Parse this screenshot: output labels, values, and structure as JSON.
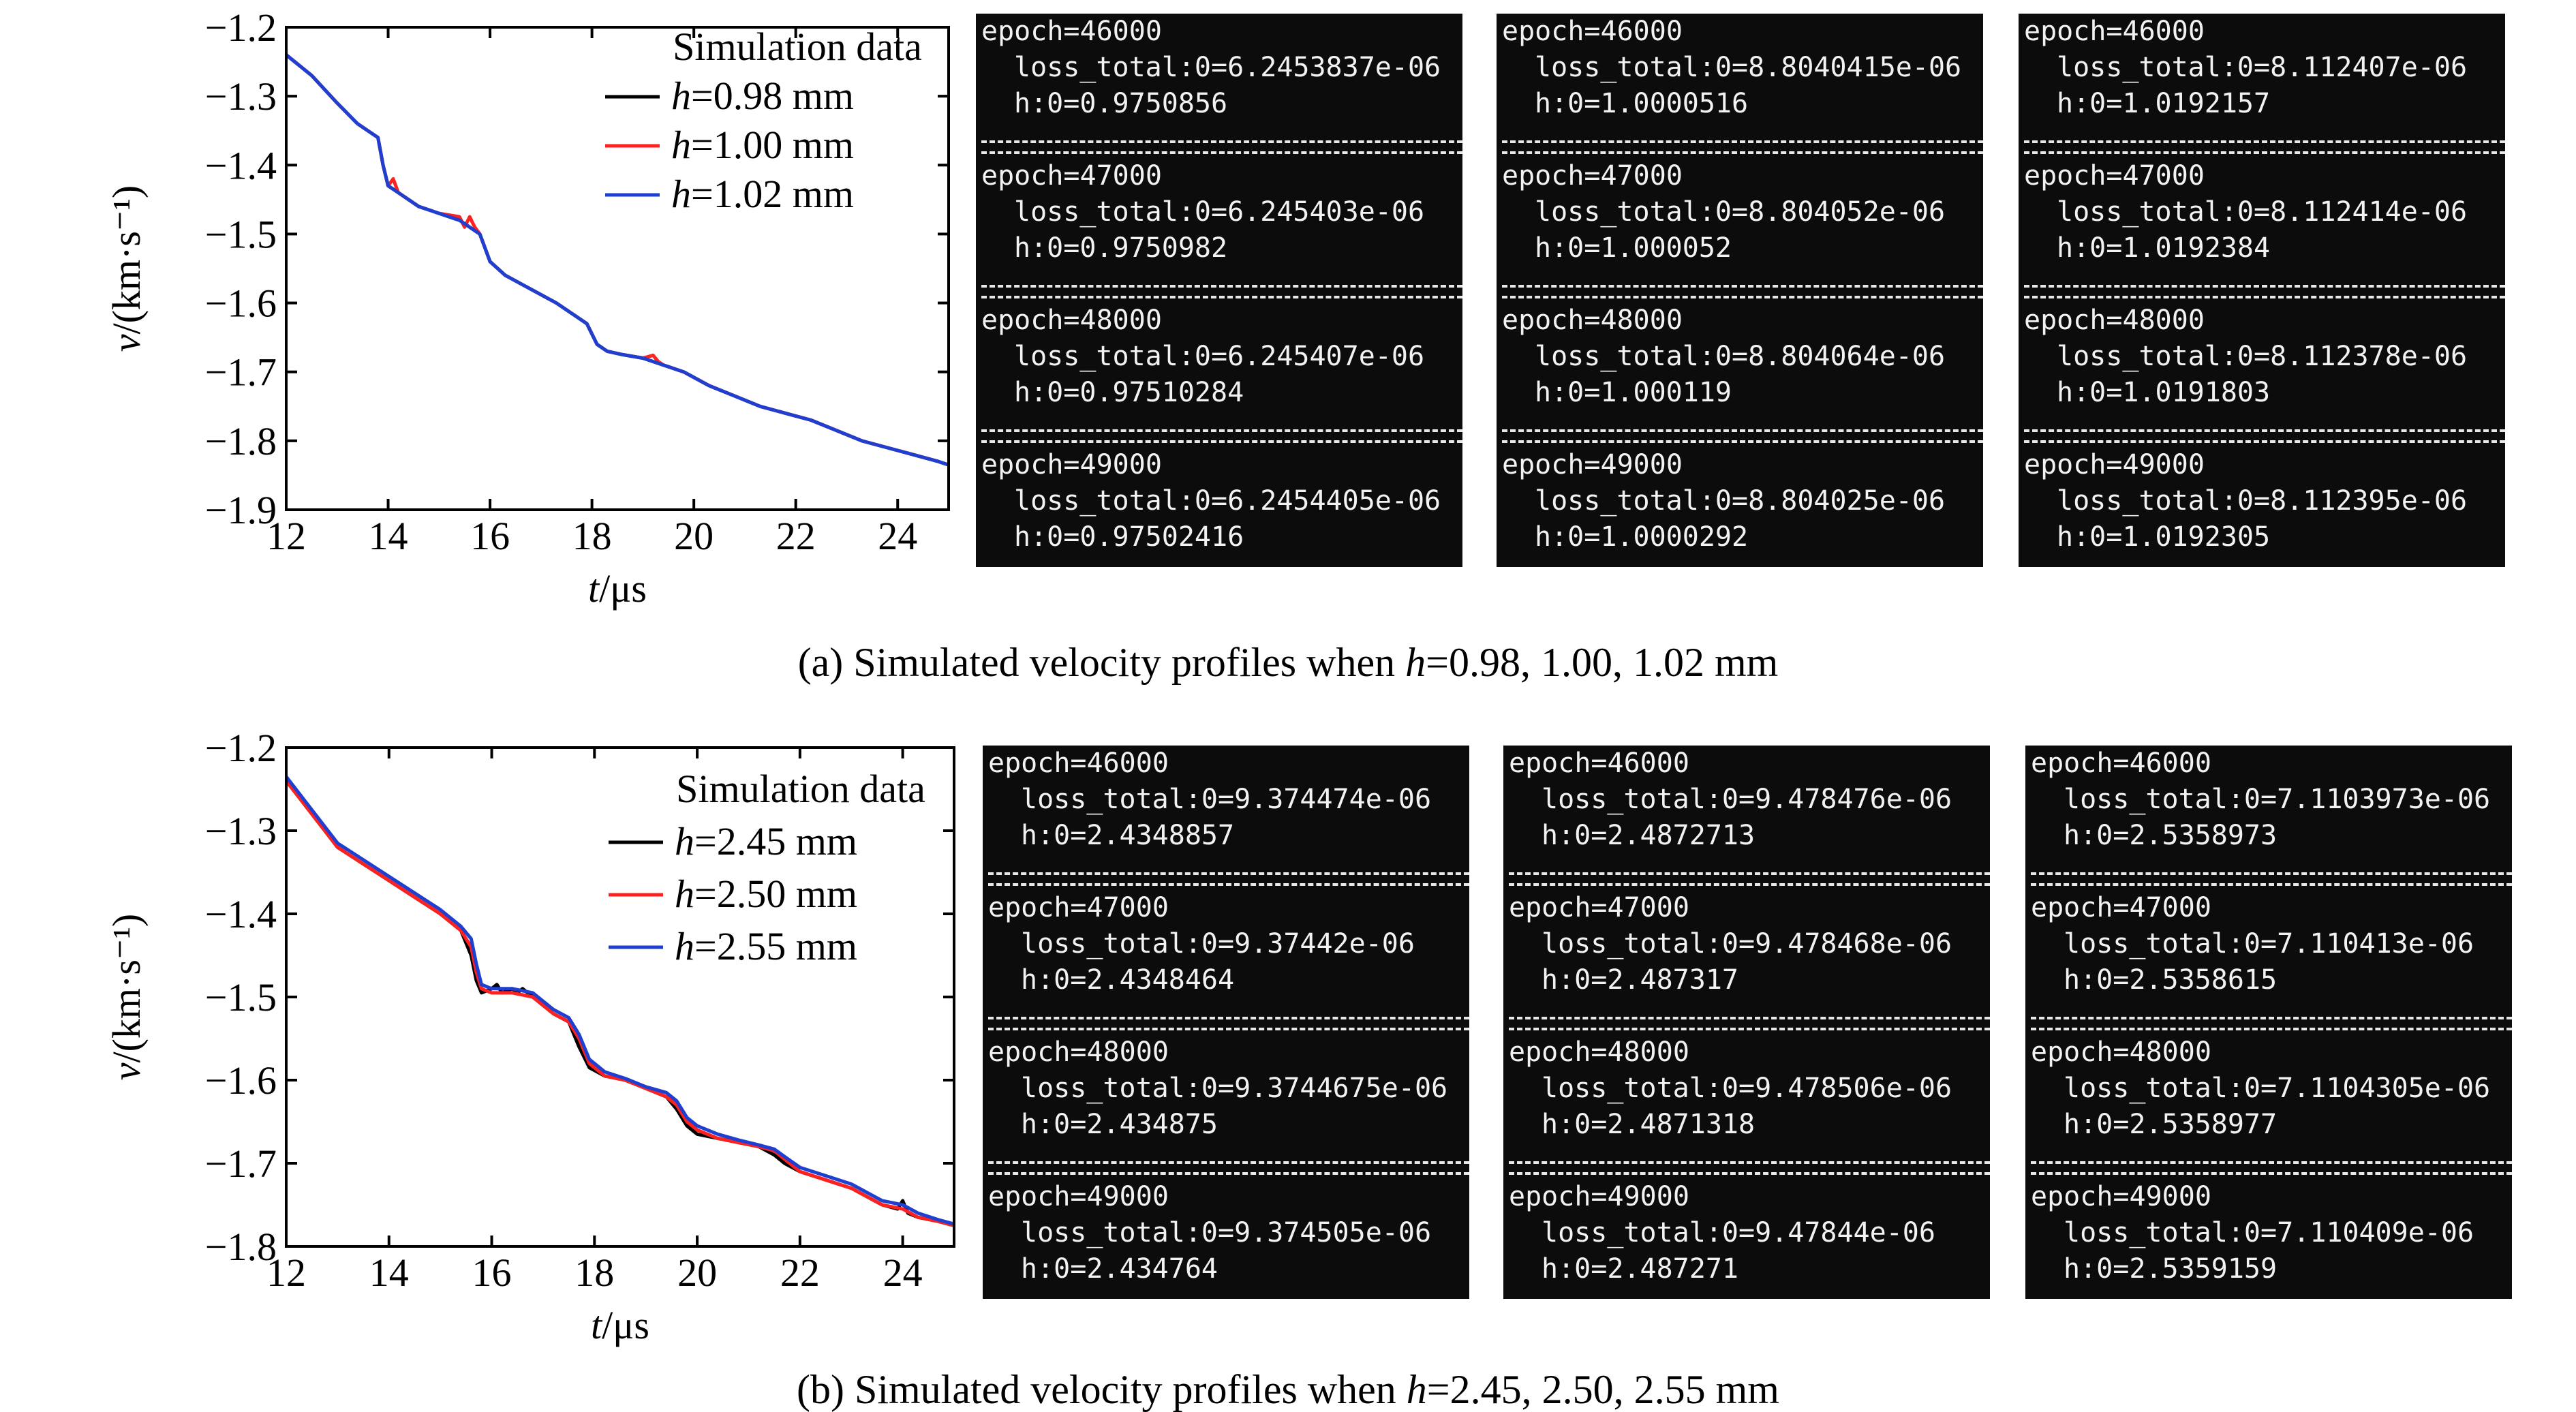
{
  "chart_data": [
    {
      "type": "line",
      "x_label": "t/μs",
      "y_label": "v/(km·s⁻¹)",
      "xlim": [
        12,
        25
      ],
      "ylim": [
        -1.9,
        -1.2
      ],
      "x_ticks": [
        "12",
        "14",
        "16",
        "18",
        "20",
        "22",
        "24"
      ],
      "y_ticks": [
        "−1.2",
        "−1.3",
        "−1.4",
        "−1.5",
        "−1.6",
        "−1.7",
        "−1.8",
        "−1.9"
      ],
      "legend_title": "Simulation data",
      "legend_position": "top-right",
      "grid": false,
      "series": [
        {
          "name": "h=0.98 mm",
          "var": "h",
          "value": "=0.98 mm",
          "color": "#000000",
          "x": [
            12,
            12.5,
            13,
            13.4,
            13.6,
            13.8,
            13.9,
            14.0,
            14.2,
            14.6,
            15.0,
            15.4,
            15.6,
            15.8,
            16.0,
            16.3,
            16.8,
            17.3,
            17.7,
            17.9,
            18.1,
            18.3,
            18.6,
            19.0,
            19.4,
            19.8,
            20.3,
            20.8,
            21.3,
            21.8,
            22.3,
            22.8,
            23.3,
            23.8,
            24.3,
            24.8,
            25.0
          ],
          "y": [
            -1.24,
            -1.27,
            -1.31,
            -1.34,
            -1.35,
            -1.36,
            -1.4,
            -1.43,
            -1.44,
            -1.46,
            -1.47,
            -1.48,
            -1.49,
            -1.5,
            -1.54,
            -1.56,
            -1.58,
            -1.6,
            -1.62,
            -1.63,
            -1.66,
            -1.67,
            -1.675,
            -1.68,
            -1.69,
            -1.7,
            -1.72,
            -1.735,
            -1.75,
            -1.76,
            -1.77,
            -1.785,
            -1.8,
            -1.81,
            -1.82,
            -1.83,
            -1.835
          ]
        },
        {
          "name": "h=1.00 mm",
          "var": "h",
          "value": "=1.00 mm",
          "color": "#ff2020",
          "x": [
            12,
            12.5,
            13,
            13.4,
            13.6,
            13.8,
            13.9,
            14.0,
            14.1,
            14.2,
            14.6,
            15.0,
            15.4,
            15.5,
            15.6,
            15.7,
            15.8,
            16.0,
            16.3,
            16.8,
            17.3,
            17.7,
            17.9,
            18.1,
            18.3,
            18.6,
            19.0,
            19.2,
            19.3,
            19.4,
            19.8,
            20.3,
            20.8,
            21.3,
            21.8,
            22.3,
            22.8,
            23.3,
            23.8,
            24.3,
            24.8,
            25.0
          ],
          "y": [
            -1.24,
            -1.27,
            -1.31,
            -1.34,
            -1.35,
            -1.36,
            -1.4,
            -1.43,
            -1.42,
            -1.44,
            -1.46,
            -1.47,
            -1.475,
            -1.49,
            -1.475,
            -1.49,
            -1.5,
            -1.54,
            -1.56,
            -1.58,
            -1.6,
            -1.62,
            -1.63,
            -1.66,
            -1.67,
            -1.675,
            -1.68,
            -1.676,
            -1.685,
            -1.69,
            -1.7,
            -1.72,
            -1.735,
            -1.75,
            -1.76,
            -1.77,
            -1.785,
            -1.8,
            -1.81,
            -1.82,
            -1.83,
            -1.835
          ]
        },
        {
          "name": "h=1.02 mm",
          "var": "h",
          "value": "=1.02 mm",
          "color": "#1f3fd0",
          "x": [
            12,
            12.5,
            13,
            13.4,
            13.6,
            13.8,
            13.9,
            14.0,
            14.2,
            14.6,
            15.0,
            15.4,
            15.6,
            15.8,
            16.0,
            16.3,
            16.8,
            17.3,
            17.7,
            17.9,
            18.1,
            18.3,
            18.6,
            19.0,
            19.4,
            19.8,
            20.3,
            20.8,
            21.3,
            21.8,
            22.3,
            22.8,
            23.3,
            23.8,
            24.3,
            24.8,
            25.0
          ],
          "y": [
            -1.24,
            -1.27,
            -1.31,
            -1.34,
            -1.35,
            -1.36,
            -1.4,
            -1.43,
            -1.44,
            -1.46,
            -1.47,
            -1.48,
            -1.49,
            -1.5,
            -1.54,
            -1.56,
            -1.58,
            -1.6,
            -1.62,
            -1.63,
            -1.66,
            -1.67,
            -1.675,
            -1.68,
            -1.69,
            -1.7,
            -1.72,
            -1.735,
            -1.75,
            -1.76,
            -1.77,
            -1.785,
            -1.8,
            -1.81,
            -1.82,
            -1.83,
            -1.835
          ]
        }
      ]
    },
    {
      "type": "line",
      "x_label": "t/μs",
      "y_label": "v/(km·s⁻¹)",
      "xlim": [
        12,
        25
      ],
      "ylim": [
        -1.8,
        -1.2
      ],
      "x_ticks": [
        "12",
        "14",
        "16",
        "18",
        "20",
        "22",
        "24"
      ],
      "y_ticks": [
        "−1.2",
        "−1.3",
        "−1.4",
        "−1.5",
        "−1.6",
        "−1.7",
        "−1.8"
      ],
      "legend_title": "Simulation data",
      "legend_position": "top-right",
      "grid": false,
      "series": [
        {
          "name": "h=2.45 mm",
          "var": "h",
          "value": "=2.45 mm",
          "color": "#000000",
          "x": [
            12,
            12.5,
            13,
            13.5,
            14.0,
            14.5,
            15.0,
            15.4,
            15.6,
            15.7,
            15.8,
            16.0,
            16.1,
            16.2,
            16.4,
            16.5,
            16.6,
            16.8,
            17.2,
            17.5,
            17.7,
            17.9,
            18.2,
            18.6,
            19.0,
            19.4,
            19.6,
            19.8,
            20.0,
            20.4,
            20.8,
            21.2,
            21.5,
            21.7,
            22.0,
            22.5,
            23.0,
            23.3,
            23.6,
            23.9,
            24.0,
            24.1,
            24.3,
            24.7,
            25.0
          ],
          "y": [
            -1.24,
            -1.28,
            -1.32,
            -1.34,
            -1.36,
            -1.38,
            -1.4,
            -1.42,
            -1.45,
            -1.48,
            -1.495,
            -1.49,
            -1.485,
            -1.495,
            -1.49,
            -1.495,
            -1.49,
            -1.5,
            -1.52,
            -1.53,
            -1.56,
            -1.585,
            -1.595,
            -1.6,
            -1.61,
            -1.62,
            -1.635,
            -1.655,
            -1.665,
            -1.67,
            -1.675,
            -1.68,
            -1.69,
            -1.7,
            -1.71,
            -1.72,
            -1.73,
            -1.74,
            -1.75,
            -1.755,
            -1.745,
            -1.76,
            -1.765,
            -1.77,
            -1.775
          ]
        },
        {
          "name": "h=2.50 mm",
          "var": "h",
          "value": "=2.50 mm",
          "color": "#ff2020",
          "x": [
            12,
            12.5,
            13,
            13.5,
            14.0,
            14.5,
            15.0,
            15.4,
            15.6,
            15.7,
            15.8,
            16.0,
            16.4,
            16.8,
            17.2,
            17.5,
            17.7,
            17.9,
            18.2,
            18.6,
            19.0,
            19.4,
            19.6,
            19.8,
            20.0,
            20.4,
            20.8,
            21.2,
            21.5,
            21.7,
            22.0,
            22.5,
            23.0,
            23.3,
            23.6,
            24.0,
            24.3,
            24.7,
            25.0
          ],
          "y": [
            -1.24,
            -1.28,
            -1.32,
            -1.34,
            -1.36,
            -1.38,
            -1.4,
            -1.42,
            -1.44,
            -1.47,
            -1.49,
            -1.495,
            -1.495,
            -1.5,
            -1.52,
            -1.53,
            -1.55,
            -1.58,
            -1.595,
            -1.6,
            -1.61,
            -1.62,
            -1.63,
            -1.65,
            -1.66,
            -1.67,
            -1.675,
            -1.68,
            -1.685,
            -1.695,
            -1.71,
            -1.72,
            -1.73,
            -1.74,
            -1.75,
            -1.755,
            -1.765,
            -1.77,
            -1.775
          ]
        },
        {
          "name": "h=2.55 mm",
          "var": "h",
          "value": "=2.55 mm",
          "color": "#1f3fd0",
          "x": [
            12,
            12.5,
            13,
            13.5,
            14.0,
            14.5,
            15.0,
            15.4,
            15.6,
            15.7,
            15.8,
            16.0,
            16.4,
            16.8,
            17.2,
            17.5,
            17.7,
            17.9,
            18.2,
            18.6,
            19.0,
            19.4,
            19.6,
            19.8,
            20.0,
            20.4,
            20.8,
            21.2,
            21.5,
            21.7,
            22.0,
            22.5,
            23.0,
            23.3,
            23.6,
            24.0,
            24.3,
            24.7,
            25.0
          ],
          "y": [
            -1.235,
            -1.275,
            -1.315,
            -1.335,
            -1.355,
            -1.375,
            -1.395,
            -1.415,
            -1.43,
            -1.46,
            -1.485,
            -1.49,
            -1.49,
            -1.495,
            -1.515,
            -1.525,
            -1.545,
            -1.575,
            -1.59,
            -1.598,
            -1.608,
            -1.615,
            -1.625,
            -1.645,
            -1.655,
            -1.665,
            -1.672,
            -1.678,
            -1.683,
            -1.692,
            -1.705,
            -1.715,
            -1.725,
            -1.735,
            -1.745,
            -1.75,
            -1.76,
            -1.768,
            -1.773
          ]
        }
      ]
    }
  ],
  "captions": {
    "a": {
      "pre": "(a) Simulated velocity profiles when ",
      "var": "h",
      "post": "=0.98, 1.00, 1.02 mm"
    },
    "b": {
      "pre": "(b) Simulated velocity profiles when ",
      "var": "h",
      "post": "=2.45, 2.50, 2.55 mm"
    }
  },
  "terminals": {
    "a": [
      [
        {
          "epoch": "epoch=46000",
          "loss": "loss_total:0=6.2453837e-06",
          "h": "h:0=0.9750856"
        },
        {
          "epoch": "epoch=47000",
          "loss": "loss_total:0=6.245403e-06",
          "h": "h:0=0.9750982"
        },
        {
          "epoch": "epoch=48000",
          "loss": "loss_total:0=6.245407e-06",
          "h": "h:0=0.97510284"
        },
        {
          "epoch": "epoch=49000",
          "loss": "loss_total:0=6.2454405e-06",
          "h": "h:0=0.97502416"
        }
      ],
      [
        {
          "epoch": "epoch=46000",
          "loss": "loss_total:0=8.8040415e-06",
          "h": "h:0=1.0000516"
        },
        {
          "epoch": "epoch=47000",
          "loss": "loss_total:0=8.804052e-06",
          "h": "h:0=1.000052"
        },
        {
          "epoch": "epoch=48000",
          "loss": "loss_total:0=8.804064e-06",
          "h": "h:0=1.000119"
        },
        {
          "epoch": "epoch=49000",
          "loss": "loss_total:0=8.804025e-06",
          "h": "h:0=1.0000292"
        }
      ],
      [
        {
          "epoch": "epoch=46000",
          "loss": "loss_total:0=8.112407e-06",
          "h": "h:0=1.0192157"
        },
        {
          "epoch": "epoch=47000",
          "loss": "loss_total:0=8.112414e-06",
          "h": "h:0=1.0192384"
        },
        {
          "epoch": "epoch=48000",
          "loss": "loss_total:0=8.112378e-06",
          "h": "h:0=1.0191803"
        },
        {
          "epoch": "epoch=49000",
          "loss": "loss_total:0=8.112395e-06",
          "h": "h:0=1.0192305"
        }
      ]
    ],
    "b": [
      [
        {
          "epoch": "epoch=46000",
          "loss": "loss_total:0=9.374474e-06",
          "h": "h:0=2.4348857"
        },
        {
          "epoch": "epoch=47000",
          "loss": "loss_total:0=9.37442e-06",
          "h": "h:0=2.4348464"
        },
        {
          "epoch": "epoch=48000",
          "loss": "loss_total:0=9.3744675e-06",
          "h": "h:0=2.434875"
        },
        {
          "epoch": "epoch=49000",
          "loss": "loss_total:0=9.374505e-06",
          "h": "h:0=2.434764"
        }
      ],
      [
        {
          "epoch": "epoch=46000",
          "loss": "loss_total:0=9.478476e-06",
          "h": "h:0=2.4872713"
        },
        {
          "epoch": "epoch=47000",
          "loss": "loss_total:0=9.478468e-06",
          "h": "h:0=2.487317"
        },
        {
          "epoch": "epoch=48000",
          "loss": "loss_total:0=9.478506e-06",
          "h": "h:0=2.4871318"
        },
        {
          "epoch": "epoch=49000",
          "loss": "loss_total:0=9.47844e-06",
          "h": "h:0=2.487271"
        }
      ],
      [
        {
          "epoch": "epoch=46000",
          "loss": "loss_total:0=7.1103973e-06",
          "h": "h:0=2.5358973"
        },
        {
          "epoch": "epoch=47000",
          "loss": "loss_total:0=7.110413e-06",
          "h": "h:0=2.5358615"
        },
        {
          "epoch": "epoch=48000",
          "loss": "loss_total:0=7.1104305e-06",
          "h": "h:0=2.5358977"
        },
        {
          "epoch": "epoch=49000",
          "loss": "loss_total:0=7.110409e-06",
          "h": "h:0=2.5359159"
        }
      ]
    ]
  }
}
